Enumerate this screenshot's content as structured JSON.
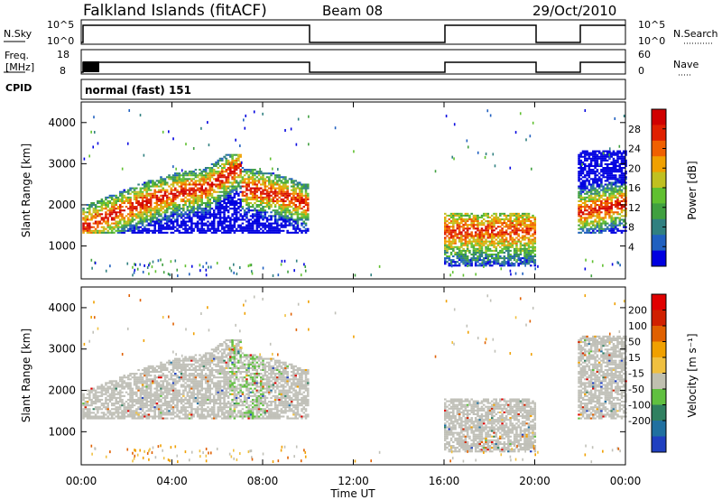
{
  "header": {
    "station": "Falkland Islands (fitACF)",
    "beam": "Beam 08",
    "date": "29/Oct/2010"
  },
  "panel_labels": {
    "nsky": "N.Sky",
    "freq_top": "Freq.",
    "freq_unit": "[MHz]",
    "cpid": "CPID",
    "nsearch": "N.Search",
    "nave": "Nave",
    "cpid_value": "normal (fast) 151"
  },
  "small_axes": {
    "nsky_ticks": [
      "10^5",
      "10^0"
    ],
    "nsearch_ticks": [
      "10^5",
      "10^0"
    ],
    "freq_ticks": [
      "18",
      "8"
    ],
    "nave_ticks": [
      "60",
      "0"
    ]
  },
  "colors": {
    "power_scale": [
      "#0000e0",
      "#2060c0",
      "#308080",
      "#40a040",
      "#60c030",
      "#c0c020",
      "#f0a000",
      "#f06000",
      "#e02000",
      "#d00000"
    ],
    "velocity_scale": [
      "#2040c0",
      "#2070a0",
      "#308060",
      "#60c040",
      "#c0c0b0",
      "#f0c040",
      "#f0a000",
      "#e06000",
      "#d02000",
      "#e00000"
    ],
    "velocity_gray": "#c0c0b8"
  },
  "chart_data": [
    {
      "type": "heatmap",
      "name": "power",
      "xlabel": "",
      "ylabel": "Slant Range [km]",
      "ylim": [
        200,
        4500
      ],
      "xlim_hours": [
        0,
        24
      ],
      "yticks": [
        "1000",
        "2000",
        "3000",
        "4000"
      ],
      "colorbar_label": "Power [dB]",
      "colorbar_ticks": [
        "28",
        "24",
        "20",
        "16",
        "12",
        "8",
        "4"
      ],
      "colorbar_range": [
        0,
        30
      ]
    },
    {
      "type": "heatmap",
      "name": "velocity",
      "xlabel": "Time UT",
      "ylabel": "Slant Range [km]",
      "ylim": [
        200,
        4500
      ],
      "xlim_hours": [
        0,
        24
      ],
      "x_tick_labels": [
        "00:00",
        "04:00",
        "08:00",
        "12:00",
        "16:00",
        "20:00",
        "00:00"
      ],
      "yticks": [
        "1000",
        "2000",
        "3000",
        "4000"
      ],
      "colorbar_label": "Velocity [m s⁻¹]",
      "colorbar_ticks": [
        "200",
        "100",
        "50",
        "15",
        "-15",
        "-50",
        "-100",
        "-200"
      ]
    }
  ]
}
